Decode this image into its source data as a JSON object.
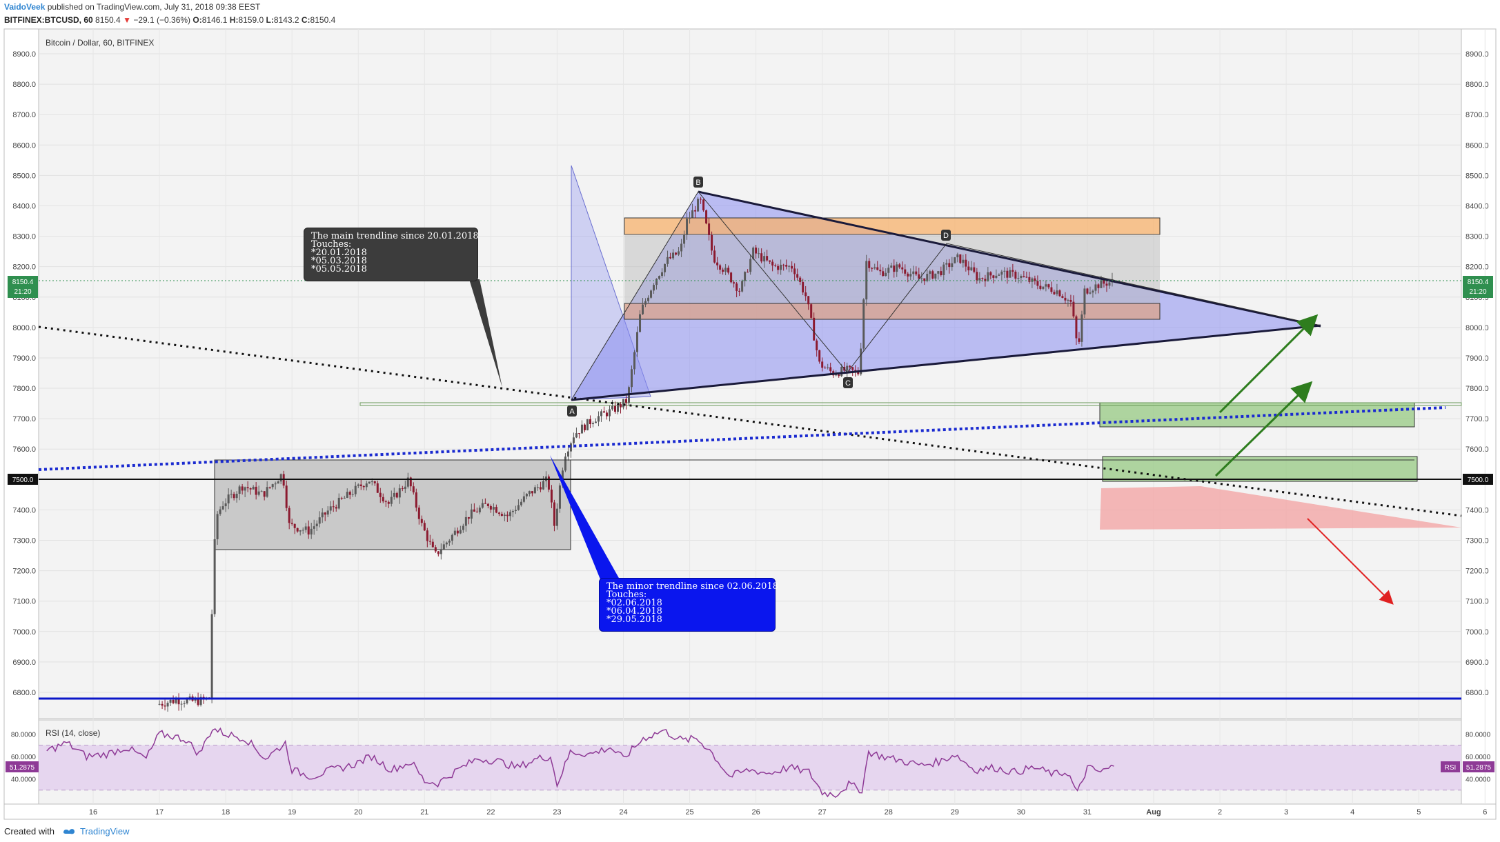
{
  "header": {
    "author": "VaidoVeek",
    "published": "published on TradingView.com, July 31, 2018 09:38 EEST",
    "symbol": "BITFINEX:BTCUSD, 60",
    "price": "8150.4",
    "change": "−29.1 (−0.36%)",
    "o_label": "O:",
    "o_value": "8146.1",
    "h_label": "H:",
    "h_value": "8159.0",
    "l_label": "L:",
    "l_value": "8143.2",
    "c_label": "C:",
    "c_value": "8150.4"
  },
  "chart_title": "Bitcoin / Dollar, 60, BITFINEX",
  "rsi_title": "RSI (14, close)",
  "notes": {
    "main": [
      "The main trendline since 20.01.2018",
      "Touches:",
      "*20.01.2018",
      "*05.03.2018",
      "*05.05.2018"
    ],
    "minor": [
      "The minor trendline since 02.06.2018",
      "Touches:",
      "*02.06.2018",
      "*06.04.2018",
      "*29.05.2018"
    ]
  },
  "point_labels": [
    "A",
    "B",
    "C",
    "D"
  ],
  "price_tags": {
    "last": "8150.4",
    "countdown": "21:20",
    "level": "7500.0",
    "rsi_value": "51.2875",
    "rsi_label": "RSI"
  },
  "footer": {
    "created": "Created with",
    "brand": "TradingView"
  },
  "colors": {
    "triangle": "#8a8ef0",
    "orange_zone": "#f7b26c",
    "resistance_zone": "#d9a48f",
    "green_zone": "#9ccc8a",
    "red_zone": "#f3a6a6",
    "blue_line": "#0a16c8",
    "rsi_line": "#8e3a96",
    "rsi_band": "#e6d6ef",
    "up_candle": "#5a5a5a",
    "down_candle": "#8b1a2f"
  },
  "chart_data": {
    "type": "candlestick",
    "title": "Bitcoin / Dollar, 60, BITFINEX",
    "xlabel": "",
    "ylabel": "",
    "x_tick_labels": [
      "16",
      "17",
      "18",
      "19",
      "20",
      "21",
      "22",
      "23",
      "24",
      "25",
      "26",
      "27",
      "28",
      "29",
      "30",
      "31",
      "Aug",
      "2",
      "3",
      "4",
      "5",
      "6"
    ],
    "y_tick_labels": [
      "6800.0",
      "6900.0",
      "7000.0",
      "7100.0",
      "7200.0",
      "7300.0",
      "7400.0",
      "7500.0",
      "7600.0",
      "7700.0",
      "7800.0",
      "7900.0",
      "8000.0",
      "8100.0",
      "8200.0",
      "8300.0",
      "8400.0",
      "8500.0",
      "8600.0",
      "8700.0",
      "8800.0",
      "8900.0"
    ],
    "ylim": [
      6750,
      8950
    ],
    "last_price": 8150.4,
    "price_path": [
      [
        17.0,
        6760
      ],
      [
        17.3,
        6775
      ],
      [
        17.6,
        6770
      ],
      [
        17.8,
        6780
      ],
      [
        17.85,
        7200
      ],
      [
        17.9,
        7380
      ],
      [
        18.0,
        7420
      ],
      [
        18.3,
        7480
      ],
      [
        18.6,
        7450
      ],
      [
        18.9,
        7520
      ],
      [
        19.0,
        7350
      ],
      [
        19.3,
        7330
      ],
      [
        19.6,
        7400
      ],
      [
        19.9,
        7450
      ],
      [
        20.2,
        7500
      ],
      [
        20.5,
        7420
      ],
      [
        20.8,
        7500
      ],
      [
        21.0,
        7350
      ],
      [
        21.2,
        7250
      ],
      [
        21.4,
        7300
      ],
      [
        21.7,
        7380
      ],
      [
        22.0,
        7420
      ],
      [
        22.3,
        7380
      ],
      [
        22.6,
        7450
      ],
      [
        22.9,
        7500
      ],
      [
        23.0,
        7350
      ],
      [
        23.15,
        7580
      ],
      [
        23.3,
        7650
      ],
      [
        23.6,
        7700
      ],
      [
        23.9,
        7730
      ],
      [
        24.1,
        7760
      ],
      [
        24.3,
        8050
      ],
      [
        24.5,
        8150
      ],
      [
        24.7,
        8220
      ],
      [
        24.9,
        8250
      ],
      [
        25.0,
        8350
      ],
      [
        25.2,
        8420
      ],
      [
        25.4,
        8230
      ],
      [
        25.6,
        8180
      ],
      [
        25.8,
        8120
      ],
      [
        26.0,
        8250
      ],
      [
        26.3,
        8200
      ],
      [
        26.6,
        8200
      ],
      [
        26.8,
        8100
      ],
      [
        27.0,
        7880
      ],
      [
        27.2,
        7850
      ],
      [
        27.4,
        7860
      ],
      [
        27.6,
        7850
      ],
      [
        27.7,
        8220
      ],
      [
        27.9,
        8180
      ],
      [
        28.2,
        8200
      ],
      [
        28.5,
        8160
      ],
      [
        28.8,
        8180
      ],
      [
        29.1,
        8230
      ],
      [
        29.4,
        8160
      ],
      [
        29.7,
        8180
      ],
      [
        30.0,
        8170
      ],
      [
        30.3,
        8140
      ],
      [
        30.6,
        8120
      ],
      [
        30.8,
        8080
      ],
      [
        30.9,
        7920
      ],
      [
        31.0,
        8120
      ],
      [
        31.2,
        8140
      ],
      [
        31.4,
        8150
      ]
    ],
    "rsi": {
      "name": "RSI (14, close)",
      "ylim": [
        20,
        90
      ],
      "band": [
        30,
        70
      ],
      "y_tick_labels": [
        "40.0000",
        "60.0000",
        "80.0000"
      ],
      "last": 51.2875,
      "path": [
        [
          15.3,
          65
        ],
        [
          15.6,
          72
        ],
        [
          15.9,
          60
        ],
        [
          16.2,
          62
        ],
        [
          16.5,
          68
        ],
        [
          16.8,
          58
        ],
        [
          17.0,
          80
        ],
        [
          17.2,
          78
        ],
        [
          17.4,
          75
        ],
        [
          17.6,
          62
        ],
        [
          17.8,
          85
        ],
        [
          18.0,
          80
        ],
        [
          18.3,
          76
        ],
        [
          18.6,
          58
        ],
        [
          18.9,
          72
        ],
        [
          19.0,
          48
        ],
        [
          19.3,
          42
        ],
        [
          19.6,
          48
        ],
        [
          19.9,
          52
        ],
        [
          20.2,
          60
        ],
        [
          20.5,
          48
        ],
        [
          20.8,
          55
        ],
        [
          21.0,
          38
        ],
        [
          21.2,
          36
        ],
        [
          21.5,
          48
        ],
        [
          21.8,
          58
        ],
        [
          22.1,
          56
        ],
        [
          22.4,
          50
        ],
        [
          22.7,
          58
        ],
        [
          22.9,
          60
        ],
        [
          23.0,
          35
        ],
        [
          23.2,
          64
        ],
        [
          23.5,
          62
        ],
        [
          23.8,
          68
        ],
        [
          24.0,
          58
        ],
        [
          24.3,
          76
        ],
        [
          24.6,
          83
        ],
        [
          24.9,
          74
        ],
        [
          25.1,
          76
        ],
        [
          25.3,
          66
        ],
        [
          25.6,
          42
        ],
        [
          25.9,
          48
        ],
        [
          26.2,
          45
        ],
        [
          26.5,
          50
        ],
        [
          26.8,
          46
        ],
        [
          27.0,
          28
        ],
        [
          27.2,
          26
        ],
        [
          27.4,
          35
        ],
        [
          27.6,
          30
        ],
        [
          27.7,
          64
        ],
        [
          27.9,
          60
        ],
        [
          28.2,
          56
        ],
        [
          28.5,
          52
        ],
        [
          28.8,
          56
        ],
        [
          29.0,
          62
        ],
        [
          29.3,
          48
        ],
        [
          29.6,
          50
        ],
        [
          29.9,
          46
        ],
        [
          30.2,
          50
        ],
        [
          30.5,
          44
        ],
        [
          30.7,
          46
        ],
        [
          30.85,
          27
        ],
        [
          31.0,
          50
        ],
        [
          31.2,
          46
        ],
        [
          31.4,
          51.3
        ]
      ]
    }
  }
}
